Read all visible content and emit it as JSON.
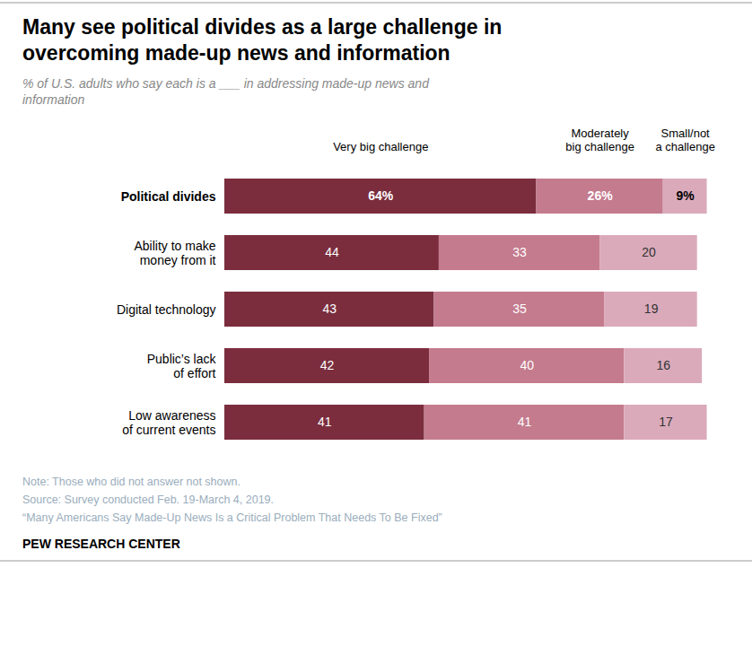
{
  "chart_data": {
    "type": "bar",
    "orientation": "horizontal",
    "stacked": true,
    "title": "Many see political divides as a large challenge in\novercoming made-up news and information",
    "subtitle": "% of U.S. adults who say each is a ___ in addressing made-up news and\ninformation",
    "categories": [
      "Political divides",
      "Ability to make\nmoney from it",
      "Digital technology",
      "Public’s lack\nof effort",
      "Low awareness\nof current events"
    ],
    "series": [
      {
        "name": "Very big challenge",
        "color": "#7b2d3e",
        "values": [
          64,
          44,
          43,
          42,
          41
        ],
        "value_labels": [
          "64%",
          "44",
          "43",
          "42",
          "41"
        ]
      },
      {
        "name": "Moderately\nbig challenge",
        "color": "#c47b8e",
        "values": [
          26,
          33,
          35,
          40,
          41
        ],
        "value_labels": [
          "26%",
          "33",
          "35",
          "40",
          "41"
        ]
      },
      {
        "name": "Small/not\na challenge",
        "color": "#daaabb",
        "values": [
          9,
          20,
          19,
          16,
          17
        ],
        "value_labels": [
          "9%",
          "20",
          "19",
          "16",
          "17"
        ]
      }
    ],
    "xlim": [
      0,
      100
    ],
    "data_labels": true,
    "tick_labels": false,
    "grid": false,
    "legend": "top",
    "annotations": [
      "Note: Those who did not answer not shown.",
      "Source: Survey conducted Feb. 19-March 4, 2019.",
      "“Many Americans Say Made-Up News Is a Critical Problem That Needs To Be Fixed”",
      "PEW RESEARCH CENTER"
    ]
  }
}
